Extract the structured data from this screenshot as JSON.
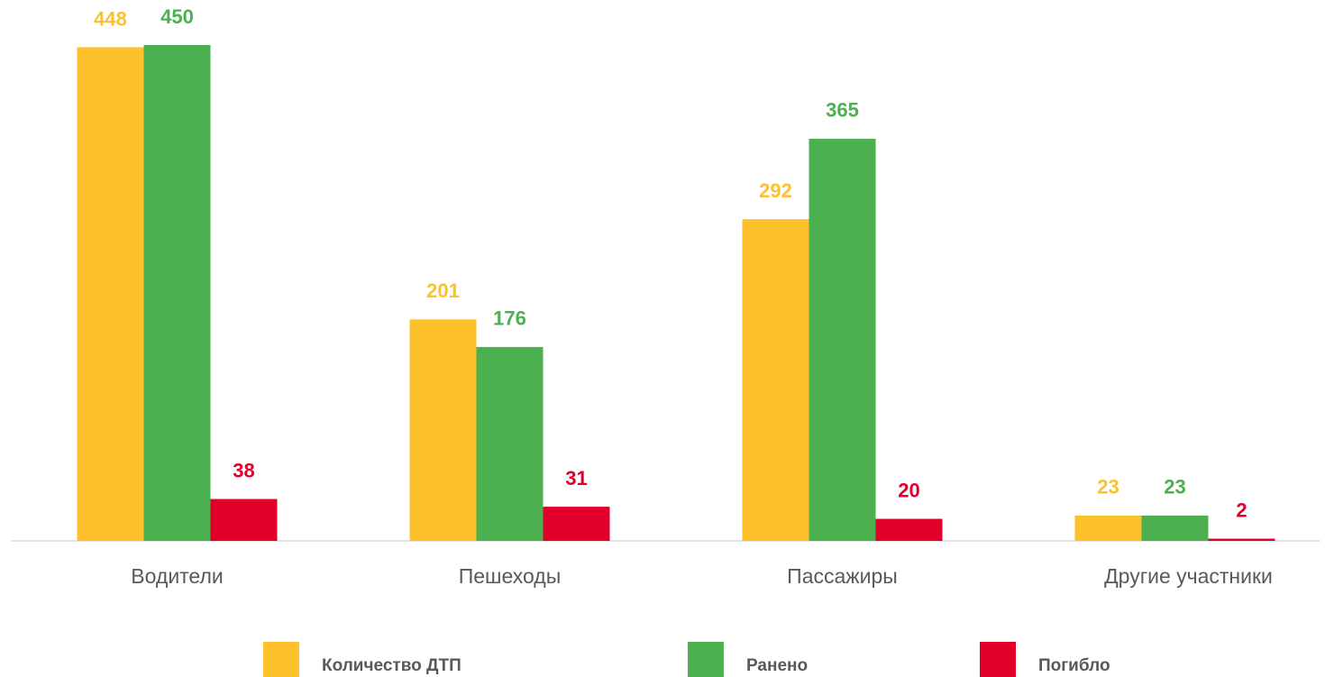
{
  "chart_data": {
    "type": "bar",
    "categories": [
      "Водители",
      "Пешеходы",
      "Пассажиры",
      "Другие участники"
    ],
    "series": [
      {
        "name": "Количество ДТП",
        "color": "#FDC12B",
        "values": [
          448,
          201,
          292,
          23
        ]
      },
      {
        "name": "Ранено",
        "color": "#4CAF50",
        "values": [
          450,
          176,
          365,
          23
        ]
      },
      {
        "name": "Погибло",
        "color": "#E2002B",
        "values": [
          38,
          31,
          20,
          2
        ]
      }
    ],
    "ylim": [
      0,
      450
    ]
  }
}
